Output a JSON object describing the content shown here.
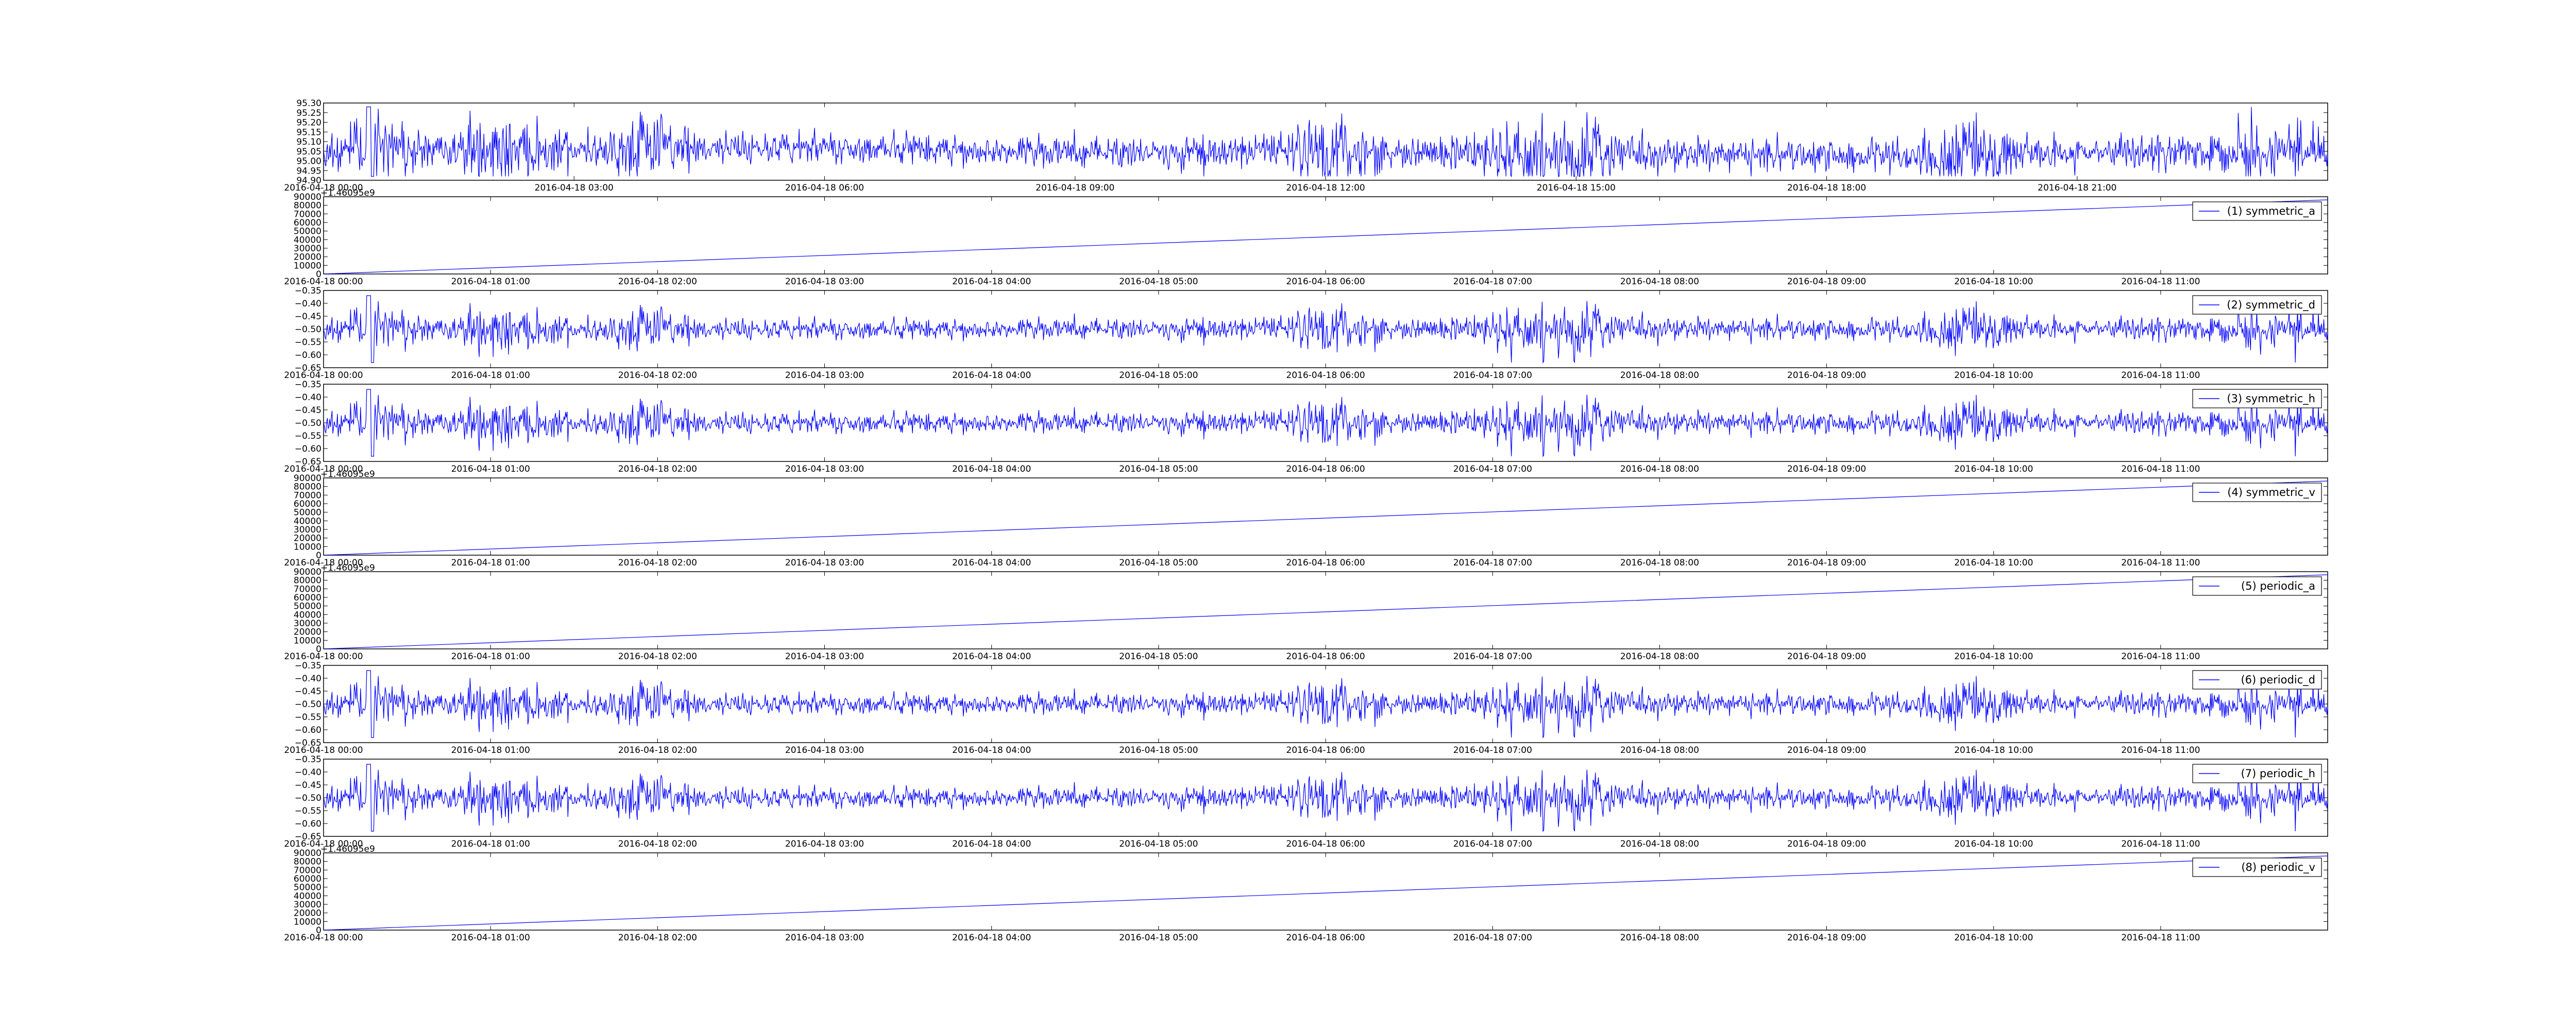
{
  "colors": {
    "series": "#0000ff",
    "axes": "#000000",
    "background": "#ffffff"
  },
  "chart_data": [
    {
      "type": "line",
      "title": "",
      "xlabel": "",
      "ylabel": "",
      "legend": null,
      "y_offset_label": "",
      "y_ticks": [
        "94.90",
        "94.95",
        "95.00",
        "95.05",
        "95.10",
        "95.15",
        "95.20",
        "95.25",
        "95.30"
      ],
      "ylim": [
        94.9,
        95.3
      ],
      "x_ticks": [
        "2016-04-18 00:00",
        "2016-04-18 03:00",
        "2016-04-18 06:00",
        "2016-04-18 09:00",
        "2016-04-18 12:00",
        "2016-04-18 15:00",
        "2016-04-18 18:00",
        "2016-04-18 21:00"
      ],
      "xlim": [
        "2016-04-18 00:00",
        "2016-04-19 00:00"
      ],
      "series": [
        {
          "kind": "noise",
          "center": 95.05,
          "spread": 0.04,
          "values_range": [
            94.92,
            95.28
          ]
        }
      ]
    },
    {
      "type": "line",
      "title": "",
      "xlabel": "",
      "ylabel": "",
      "legend": "(1) symmetric_a",
      "y_offset_label": "+1.46095e9",
      "y_ticks": [
        "0",
        "10000",
        "20000",
        "30000",
        "40000",
        "50000",
        "60000",
        "70000",
        "80000",
        "90000"
      ],
      "ylim": [
        0,
        90000
      ],
      "x_ticks": [
        "2016-04-18 00:00",
        "2016-04-18 01:00",
        "2016-04-18 02:00",
        "2016-04-18 03:00",
        "2016-04-18 04:00",
        "2016-04-18 05:00",
        "2016-04-18 06:00",
        "2016-04-18 07:00",
        "2016-04-18 08:00",
        "2016-04-18 09:00",
        "2016-04-18 10:00",
        "2016-04-18 11:00"
      ],
      "xlim": [
        "2016-04-18 00:00",
        "2016-04-18 12:00"
      ],
      "series": [
        {
          "kind": "linear",
          "start": 0,
          "end": 86400
        }
      ]
    },
    {
      "type": "line",
      "title": "",
      "xlabel": "",
      "ylabel": "",
      "legend": "(2) symmetric_d",
      "y_offset_label": "",
      "y_ticks": [
        "−0.65",
        "−0.60",
        "−0.55",
        "−0.50",
        "−0.45",
        "−0.40",
        "−0.35"
      ],
      "ylim": [
        -0.65,
        -0.35
      ],
      "x_ticks": [
        "2016-04-18 00:00",
        "2016-04-18 01:00",
        "2016-04-18 02:00",
        "2016-04-18 03:00",
        "2016-04-18 04:00",
        "2016-04-18 05:00",
        "2016-04-18 06:00",
        "2016-04-18 07:00",
        "2016-04-18 08:00",
        "2016-04-18 09:00",
        "2016-04-18 10:00",
        "2016-04-18 11:00"
      ],
      "xlim": [
        "2016-04-18 00:00",
        "2016-04-18 12:00"
      ],
      "series": [
        {
          "kind": "noise",
          "center": -0.5,
          "spread": 0.02,
          "values_range": [
            -0.63,
            -0.37
          ]
        }
      ]
    },
    {
      "type": "line",
      "title": "",
      "xlabel": "",
      "ylabel": "",
      "legend": "(3) symmetric_h",
      "y_offset_label": "",
      "y_ticks": [
        "−0.65",
        "−0.60",
        "−0.55",
        "−0.50",
        "−0.45",
        "−0.40",
        "−0.35"
      ],
      "ylim": [
        -0.65,
        -0.35
      ],
      "x_ticks": [
        "2016-04-18 00:00",
        "2016-04-18 01:00",
        "2016-04-18 02:00",
        "2016-04-18 03:00",
        "2016-04-18 04:00",
        "2016-04-18 05:00",
        "2016-04-18 06:00",
        "2016-04-18 07:00",
        "2016-04-18 08:00",
        "2016-04-18 09:00",
        "2016-04-18 10:00",
        "2016-04-18 11:00"
      ],
      "xlim": [
        "2016-04-18 00:00",
        "2016-04-18 12:00"
      ],
      "series": [
        {
          "kind": "noise",
          "center": -0.5,
          "spread": 0.02,
          "values_range": [
            -0.63,
            -0.37
          ]
        }
      ]
    },
    {
      "type": "line",
      "title": "",
      "xlabel": "",
      "ylabel": "",
      "legend": "(4) symmetric_v",
      "y_offset_label": "+1.46095e9",
      "y_ticks": [
        "0",
        "10000",
        "20000",
        "30000",
        "40000",
        "50000",
        "60000",
        "70000",
        "80000",
        "90000"
      ],
      "ylim": [
        0,
        90000
      ],
      "x_ticks": [
        "2016-04-18 00:00",
        "2016-04-18 01:00",
        "2016-04-18 02:00",
        "2016-04-18 03:00",
        "2016-04-18 04:00",
        "2016-04-18 05:00",
        "2016-04-18 06:00",
        "2016-04-18 07:00",
        "2016-04-18 08:00",
        "2016-04-18 09:00",
        "2016-04-18 10:00",
        "2016-04-18 11:00"
      ],
      "xlim": [
        "2016-04-18 00:00",
        "2016-04-18 12:00"
      ],
      "series": [
        {
          "kind": "linear",
          "start": 0,
          "end": 86400
        }
      ]
    },
    {
      "type": "line",
      "title": "",
      "xlabel": "",
      "ylabel": "",
      "legend": "(5) periodic_a",
      "y_offset_label": "+1.46095e9",
      "y_ticks": [
        "0",
        "10000",
        "20000",
        "30000",
        "40000",
        "50000",
        "60000",
        "70000",
        "80000",
        "90000"
      ],
      "ylim": [
        0,
        90000
      ],
      "x_ticks": [
        "2016-04-18 00:00",
        "2016-04-18 01:00",
        "2016-04-18 02:00",
        "2016-04-18 03:00",
        "2016-04-18 04:00",
        "2016-04-18 05:00",
        "2016-04-18 06:00",
        "2016-04-18 07:00",
        "2016-04-18 08:00",
        "2016-04-18 09:00",
        "2016-04-18 10:00",
        "2016-04-18 11:00"
      ],
      "xlim": [
        "2016-04-18 00:00",
        "2016-04-18 12:00"
      ],
      "series": [
        {
          "kind": "linear",
          "start": 0,
          "end": 86400
        }
      ]
    },
    {
      "type": "line",
      "title": "",
      "xlabel": "",
      "ylabel": "",
      "legend": "(6) periodic_d",
      "y_offset_label": "",
      "y_ticks": [
        "−0.65",
        "−0.60",
        "−0.55",
        "−0.50",
        "−0.45",
        "−0.40",
        "−0.35"
      ],
      "ylim": [
        -0.65,
        -0.35
      ],
      "x_ticks": [
        "2016-04-18 00:00",
        "2016-04-18 01:00",
        "2016-04-18 02:00",
        "2016-04-18 03:00",
        "2016-04-18 04:00",
        "2016-04-18 05:00",
        "2016-04-18 06:00",
        "2016-04-18 07:00",
        "2016-04-18 08:00",
        "2016-04-18 09:00",
        "2016-04-18 10:00",
        "2016-04-18 11:00"
      ],
      "xlim": [
        "2016-04-18 00:00",
        "2016-04-18 12:00"
      ],
      "series": [
        {
          "kind": "noise",
          "center": -0.5,
          "spread": 0.02,
          "values_range": [
            -0.63,
            -0.37
          ]
        }
      ]
    },
    {
      "type": "line",
      "title": "",
      "xlabel": "",
      "ylabel": "",
      "legend": "(7) periodic_h",
      "y_offset_label": "",
      "y_ticks": [
        "−0.65",
        "−0.60",
        "−0.55",
        "−0.50",
        "−0.45",
        "−0.40",
        "−0.35"
      ],
      "ylim": [
        -0.65,
        -0.35
      ],
      "x_ticks": [
        "2016-04-18 00:00",
        "2016-04-18 01:00",
        "2016-04-18 02:00",
        "2016-04-18 03:00",
        "2016-04-18 04:00",
        "2016-04-18 05:00",
        "2016-04-18 06:00",
        "2016-04-18 07:00",
        "2016-04-18 08:00",
        "2016-04-18 09:00",
        "2016-04-18 10:00",
        "2016-04-18 11:00"
      ],
      "xlim": [
        "2016-04-18 00:00",
        "2016-04-18 12:00"
      ],
      "series": [
        {
          "kind": "noise",
          "center": -0.5,
          "spread": 0.02,
          "values_range": [
            -0.63,
            -0.37
          ]
        }
      ]
    },
    {
      "type": "line",
      "title": "",
      "xlabel": "",
      "ylabel": "",
      "legend": "(8) periodic_v",
      "y_offset_label": "+1.46095e9",
      "y_ticks": [
        "0",
        "10000",
        "20000",
        "30000",
        "40000",
        "50000",
        "60000",
        "70000",
        "80000",
        "90000"
      ],
      "ylim": [
        0,
        90000
      ],
      "x_ticks": [
        "2016-04-18 00:00",
        "2016-04-18 01:00",
        "2016-04-18 02:00",
        "2016-04-18 03:00",
        "2016-04-18 04:00",
        "2016-04-18 05:00",
        "2016-04-18 06:00",
        "2016-04-18 07:00",
        "2016-04-18 08:00",
        "2016-04-18 09:00",
        "2016-04-18 10:00",
        "2016-04-18 11:00"
      ],
      "xlim": [
        "2016-04-18 00:00",
        "2016-04-18 12:00"
      ],
      "series": [
        {
          "kind": "linear",
          "start": 0,
          "end": 86400
        }
      ]
    }
  ]
}
